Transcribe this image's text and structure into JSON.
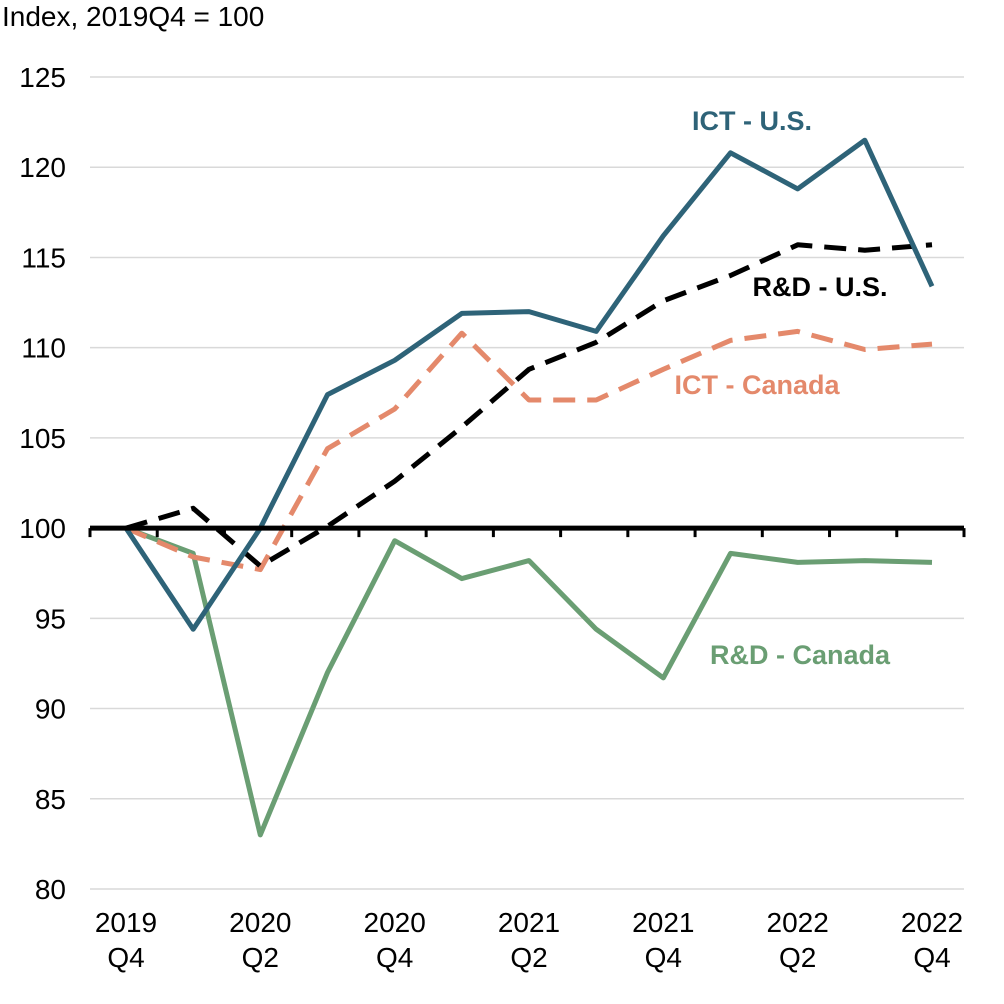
{
  "chart_data": {
    "type": "line",
    "ylabel": "Index, 2019Q4 = 100",
    "ylim": [
      80,
      125
    ],
    "yticks": [
      80,
      85,
      90,
      95,
      100,
      105,
      110,
      115,
      120,
      125
    ],
    "baseline": 100,
    "grid": true,
    "x": [
      "2019Q4",
      "2020Q1",
      "2020Q2",
      "2020Q3",
      "2020Q4",
      "2021Q1",
      "2021Q2",
      "2021Q3",
      "2021Q4",
      "2022Q1",
      "2022Q2",
      "2022Q3",
      "2022Q4"
    ],
    "xtick_labels": [
      {
        "year": "2019",
        "quarter": "Q4"
      },
      {
        "year": "2020",
        "quarter": "Q2"
      },
      {
        "year": "2020",
        "quarter": "Q4"
      },
      {
        "year": "2021",
        "quarter": "Q2"
      },
      {
        "year": "2021",
        "quarter": "Q4"
      },
      {
        "year": "2022",
        "quarter": "Q2"
      },
      {
        "year": "2022",
        "quarter": "Q4"
      }
    ],
    "series": [
      {
        "name": "ICT - U.S.",
        "color": "#2e6378",
        "dash": "solid",
        "values": [
          100,
          94.4,
          100,
          107.4,
          109.3,
          111.9,
          112.0,
          110.9,
          116.2,
          120.8,
          118.8,
          121.5,
          113.4
        ]
      },
      {
        "name": "R&D - U.S.",
        "color": "#000000",
        "dash": "dashed",
        "values": [
          100,
          101.1,
          97.9,
          100.1,
          102.6,
          105.6,
          108.8,
          110.3,
          112.6,
          114.0,
          115.7,
          115.4,
          115.7
        ]
      },
      {
        "name": "ICT - Canada",
        "color": "#e4896b",
        "dash": "dashed",
        "values": [
          100,
          98.4,
          97.7,
          104.4,
          106.6,
          110.8,
          107.1,
          107.1,
          108.8,
          110.4,
          110.9,
          109.9,
          110.2
        ]
      },
      {
        "name": "R&D - Canada",
        "color": "#6a9e73",
        "dash": "solid",
        "values": [
          100,
          98.6,
          83.0,
          92.0,
          99.3,
          97.2,
          98.2,
          94.4,
          91.7,
          98.6,
          98.1,
          98.2,
          98.1
        ]
      }
    ]
  }
}
